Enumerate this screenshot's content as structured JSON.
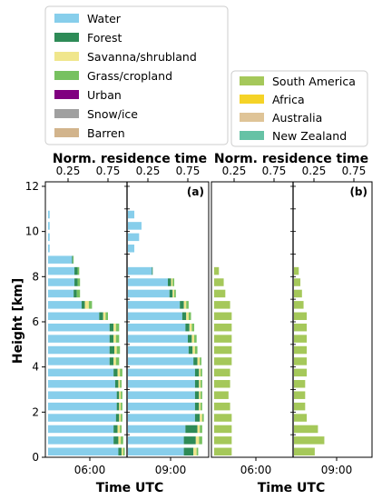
{
  "chart_data": {
    "type": "bar",
    "ylabel": "Height [km]",
    "ylim": [
      0,
      12.2
    ],
    "yticks": [
      "0",
      "2",
      "4",
      "6",
      "8",
      "10",
      "12"
    ],
    "top_axis_label": "Norm. residence time",
    "top_ticks": [
      "0.25",
      "0.75",
      "0.25",
      "0.75"
    ],
    "xlabel": "Time UTC",
    "time_ticks": [
      "06:00",
      "09:00"
    ],
    "heights": [
      0.5,
      1.0,
      1.5,
      2.0,
      2.5,
      3.0,
      3.5,
      4.0,
      4.5,
      5.0,
      5.5,
      6.0,
      6.5,
      7.0,
      7.5,
      8.0,
      8.5,
      9.0,
      9.5,
      10.0,
      10.5,
      11.0,
      11.5,
      12.0
    ],
    "panels": [
      {
        "label": "(a)",
        "legend_placement": "top-left",
        "series": [
          {
            "name": "Water",
            "color": "#87ceeb"
          },
          {
            "name": "Forest",
            "color": "#2e8b57"
          },
          {
            "name": "Savanna/shrubland",
            "color": "#f0e68c"
          },
          {
            "name": "Grass/cropland",
            "color": "#77c160"
          },
          {
            "name": "Urban",
            "color": "#800080"
          },
          {
            "name": "Snow/ice",
            "color": "#a0a0a0"
          },
          {
            "name": "Barren",
            "color": "#d2b48c"
          }
        ],
        "columns": [
          {
            "time": "06:00",
            "segments": [
              [
                0.88,
                0.04,
                0.02,
                0.02
              ],
              [
                0.82,
                0.06,
                0.03,
                0.03
              ],
              [
                0.82,
                0.05,
                0.03,
                0.02
              ],
              [
                0.85,
                0.04,
                0.02,
                0.02
              ],
              [
                0.86,
                0.03,
                0.02,
                0.02
              ],
              [
                0.86,
                0.03,
                0.02,
                0.02
              ],
              [
                0.84,
                0.04,
                0.02,
                0.02
              ],
              [
                0.82,
                0.05,
                0.03,
                0.03
              ],
              [
                0.77,
                0.05,
                0.03,
                0.04
              ],
              [
                0.77,
                0.06,
                0.03,
                0.04
              ],
              [
                0.77,
                0.05,
                0.03,
                0.04
              ],
              [
                0.77,
                0.05,
                0.03,
                0.04
              ],
              [
                0.64,
                0.05,
                0.03,
                0.03
              ],
              [
                0.42,
                0.04,
                0.05,
                0.04
              ],
              [
                0.32,
                0.04,
                0.0,
                0.04
              ],
              [
                0.33,
                0.04,
                0.0,
                0.03
              ],
              [
                0.33,
                0.04,
                0.0,
                0.02
              ],
              [
                0.3,
                0.01,
                0.0,
                0.01
              ],
              [
                0.02,
                0.0,
                0.0,
                0.0
              ],
              [
                0.02,
                0.0,
                0.0,
                0.0
              ],
              [
                0.02,
                0.0,
                0.0,
                0.0
              ],
              [
                0.02,
                0.0,
                0.0,
                0.0
              ],
              [
                0.0,
                0.0,
                0.0,
                0.0
              ],
              [
                0.0,
                0.0,
                0.0,
                0.0
              ]
            ]
          },
          {
            "time": "09:00",
            "segments": [
              [
                0.7,
                0.12,
                0.04,
                0.02
              ],
              [
                0.7,
                0.15,
                0.04,
                0.04
              ],
              [
                0.72,
                0.15,
                0.03,
                0.03
              ],
              [
                0.84,
                0.06,
                0.03,
                0.02
              ],
              [
                0.84,
                0.05,
                0.02,
                0.02
              ],
              [
                0.84,
                0.05,
                0.02,
                0.02
              ],
              [
                0.84,
                0.05,
                0.02,
                0.02
              ],
              [
                0.84,
                0.05,
                0.02,
                0.02
              ],
              [
                0.82,
                0.05,
                0.03,
                0.02
              ],
              [
                0.76,
                0.05,
                0.03,
                0.03
              ],
              [
                0.75,
                0.05,
                0.03,
                0.03
              ],
              [
                0.72,
                0.05,
                0.03,
                0.03
              ],
              [
                0.68,
                0.05,
                0.03,
                0.03
              ],
              [
                0.65,
                0.05,
                0.03,
                0.03
              ],
              [
                0.52,
                0.04,
                0.02,
                0.02
              ],
              [
                0.5,
                0.04,
                0.02,
                0.02
              ],
              [
                0.3,
                0.01,
                0.0,
                0.0
              ],
              [
                0.0,
                0.0,
                0.0,
                0.0
              ],
              [
                0.08,
                0.0,
                0.0,
                0.0
              ],
              [
                0.14,
                0.0,
                0.0,
                0.0
              ],
              [
                0.17,
                0.0,
                0.0,
                0.0
              ],
              [
                0.08,
                0.0,
                0.0,
                0.0
              ],
              [
                0.0,
                0.0,
                0.0,
                0.0
              ],
              [
                0.0,
                0.0,
                0.0,
                0.0
              ]
            ]
          }
        ]
      },
      {
        "label": "(b)",
        "legend_placement": "top-right",
        "series": [
          {
            "name": "South America",
            "color": "#a5c85a"
          },
          {
            "name": "Africa",
            "color": "#f5d327"
          },
          {
            "name": "Australia",
            "color": "#dfc497"
          },
          {
            "name": "New Zealand",
            "color": "#66c2a5"
          }
        ],
        "columns": [
          {
            "time": "06:00",
            "segments": [
              [
                0.22
              ],
              [
                0.22
              ],
              [
                0.22
              ],
              [
                0.22
              ],
              [
                0.2
              ],
              [
                0.18
              ],
              [
                0.2
              ],
              [
                0.2
              ],
              [
                0.22
              ],
              [
                0.22
              ],
              [
                0.22
              ],
              [
                0.22
              ],
              [
                0.22
              ],
              [
                0.2
              ],
              [
                0.14
              ],
              [
                0.12
              ],
              [
                0.06
              ],
              [
                0.0
              ],
              [
                0.0
              ],
              [
                0.0
              ],
              [
                0.0
              ],
              [
                0.0
              ],
              [
                0.0
              ],
              [
                0.0
              ]
            ]
          },
          {
            "time": "09:00",
            "segments": [
              [
                0.26
              ],
              [
                0.38
              ],
              [
                0.3
              ],
              [
                0.16
              ],
              [
                0.14
              ],
              [
                0.14
              ],
              [
                0.14
              ],
              [
                0.16
              ],
              [
                0.16
              ],
              [
                0.16
              ],
              [
                0.16
              ],
              [
                0.16
              ],
              [
                0.16
              ],
              [
                0.12
              ],
              [
                0.1
              ],
              [
                0.08
              ],
              [
                0.06
              ],
              [
                0.0
              ],
              [
                0.0
              ],
              [
                0.0
              ],
              [
                0.0
              ],
              [
                0.0
              ],
              [
                0.0
              ],
              [
                0.0
              ]
            ]
          }
        ]
      }
    ]
  }
}
